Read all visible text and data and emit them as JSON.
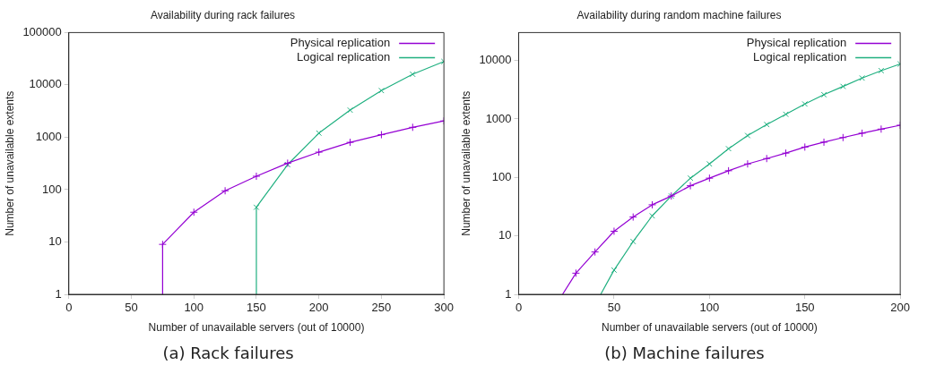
{
  "chart_data": [
    {
      "type": "line",
      "title": "Availability during rack failures",
      "xlabel": "Number of unavailable servers (out of 10000)",
      "ylabel": "Number of unavailable extents",
      "annotations": [
        "(a) Rack failures"
      ],
      "series": [
        {
          "name": "Physical replication",
          "color": "#9400d3",
          "marker": "cross",
          "x": [
            75,
            75,
            100,
            125,
            150,
            175,
            200,
            225,
            250,
            275,
            300
          ],
          "values": [
            1,
            9,
            37,
            95,
            180,
            320,
            520,
            800,
            1120,
            1550,
            2050
          ]
        },
        {
          "name": "Logical replication",
          "color": "#20b080",
          "marker": "cross",
          "x": [
            150,
            150,
            175,
            200,
            225,
            250,
            275,
            300
          ],
          "values": [
            1,
            46,
            300,
            1200,
            3300,
            7800,
            16000,
            28000
          ]
        }
      ],
      "xlim": [
        0,
        300
      ],
      "xticks": [
        0,
        50,
        100,
        150,
        200,
        250,
        300
      ],
      "ylim": [
        1,
        100000
      ],
      "yticks": [
        1,
        10,
        100,
        1000,
        10000,
        100000
      ],
      "log": "y",
      "grid": false,
      "legend": "top right",
      "line_style": "solid"
    },
    {
      "type": "line",
      "title": "Availability during random machine failures",
      "xlabel": "Number of unavailable servers (out of 10000)",
      "ylabel": "Number of unavailable extents",
      "annotations": [
        "(b) Machine failures"
      ],
      "series": [
        {
          "name": "Physical replication",
          "color": "#9400d3",
          "marker": "cross",
          "x": [
            23,
            30,
            40,
            50,
            60,
            70,
            80,
            90,
            100,
            110,
            120,
            130,
            140,
            150,
            160,
            170,
            180,
            190,
            200
          ],
          "values": [
            1,
            2.3,
            5.3,
            12,
            21,
            34,
            48,
            72,
            97,
            130,
            170,
            210,
            260,
            330,
            400,
            480,
            570,
            670,
            780
          ]
        },
        {
          "name": "Logical replication",
          "color": "#20b080",
          "marker": "cross",
          "x": [
            43,
            50,
            60,
            70,
            80,
            90,
            100,
            110,
            120,
            130,
            140,
            150,
            160,
            170,
            180,
            190,
            200
          ],
          "values": [
            1,
            2.6,
            8,
            22,
            48,
            97,
            170,
            310,
            520,
            800,
            1200,
            1800,
            2600,
            3600,
            5000,
            6700,
            8700
          ]
        }
      ],
      "xlim": [
        0,
        200
      ],
      "xticks": [
        0,
        50,
        100,
        150,
        200
      ],
      "ylim": [
        1,
        30000
      ],
      "yticks": [
        1,
        10,
        100,
        1000,
        10000
      ],
      "log": "y",
      "grid": false,
      "legend": "top right",
      "line_style": "solid"
    }
  ]
}
